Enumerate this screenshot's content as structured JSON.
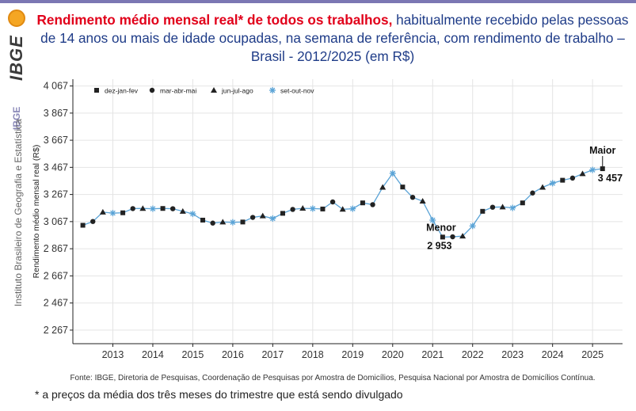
{
  "branding": {
    "logo_word": "IBGE",
    "sidebar_label": "IBGE",
    "institute": "Instituto Brasileiro de Geografia e Estatística"
  },
  "header": {
    "title_red": "Rendimento médio mensal real* de todos os trabalhos,",
    "title_rest": " habitualmente recebido pelas pessoas de 14 anos ou mais de idade ocupadas, na semana de referência, com rendimento de trabalho – Brasil - 2012/2025 (em R$)"
  },
  "source": "Fonte: IBGE, Diretoria de Pesquisas, Coordenação de Pesquisas por Amostra de Domicílios, Pesquisa Nacional por Amostra de Domicílios Contínua.",
  "footnote": "* a preços da média dos três meses do trimestre que está sendo divulgado",
  "chart_data": {
    "type": "line",
    "ylabel": "Rendimento médio mensal real (R$)",
    "xlabel": "",
    "ylim": [
      2167,
      4117
    ],
    "y_ticks": [
      2267,
      2467,
      2667,
      2867,
      3067,
      3267,
      3467,
      3667,
      3867,
      4067
    ],
    "y_tick_labels": [
      "2 267",
      "2 467",
      "2 667",
      "2 867",
      "3 067",
      "3 267",
      "3 467",
      "3 667",
      "3 867",
      "4 067"
    ],
    "x_ticks": [
      2013,
      2014,
      2015,
      2016,
      2017,
      2018,
      2019,
      2020,
      2021,
      2022,
      2023,
      2024,
      2025
    ],
    "grid": true,
    "line_color": "#5aa3d6",
    "legend": {
      "placement": "top-left",
      "entries": [
        {
          "label": "dez-jan-fev",
          "marker": "square"
        },
        {
          "label": "mar-abr-mai",
          "marker": "circle"
        },
        {
          "label": "jun-jul-ago",
          "marker": "triangle"
        },
        {
          "label": "set-out-nov",
          "marker": "asterisk"
        }
      ]
    },
    "series": [
      {
        "values": [
          {
            "x": 2012.25,
            "y": 3040,
            "m": "square"
          },
          {
            "x": 2012.5,
            "y": 3068,
            "m": "circle"
          },
          {
            "x": 2012.75,
            "y": 3137,
            "m": "triangle"
          },
          {
            "x": 2013.0,
            "y": 3130,
            "m": "asterisk"
          },
          {
            "x": 2013.25,
            "y": 3132,
            "m": "square"
          },
          {
            "x": 2013.5,
            "y": 3163,
            "m": "circle"
          },
          {
            "x": 2013.75,
            "y": 3164,
            "m": "triangle"
          },
          {
            "x": 2014.0,
            "y": 3162,
            "m": "asterisk"
          },
          {
            "x": 2014.25,
            "y": 3164,
            "m": "square"
          },
          {
            "x": 2014.5,
            "y": 3162,
            "m": "circle"
          },
          {
            "x": 2014.75,
            "y": 3143,
            "m": "triangle"
          },
          {
            "x": 2015.0,
            "y": 3124,
            "m": "asterisk"
          },
          {
            "x": 2015.25,
            "y": 3078,
            "m": "square"
          },
          {
            "x": 2015.5,
            "y": 3056,
            "m": "circle"
          },
          {
            "x": 2015.75,
            "y": 3064,
            "m": "triangle"
          },
          {
            "x": 2016.0,
            "y": 3062,
            "m": "asterisk"
          },
          {
            "x": 2016.25,
            "y": 3064,
            "m": "square"
          },
          {
            "x": 2016.5,
            "y": 3098,
            "m": "circle"
          },
          {
            "x": 2016.75,
            "y": 3109,
            "m": "triangle"
          },
          {
            "x": 2017.0,
            "y": 3090,
            "m": "asterisk"
          },
          {
            "x": 2017.25,
            "y": 3128,
            "m": "square"
          },
          {
            "x": 2017.5,
            "y": 3157,
            "m": "circle"
          },
          {
            "x": 2017.75,
            "y": 3165,
            "m": "triangle"
          },
          {
            "x": 2018.0,
            "y": 3163,
            "m": "asterisk"
          },
          {
            "x": 2018.25,
            "y": 3160,
            "m": "square"
          },
          {
            "x": 2018.5,
            "y": 3212,
            "m": "circle"
          },
          {
            "x": 2018.75,
            "y": 3158,
            "m": "triangle"
          },
          {
            "x": 2019.0,
            "y": 3162,
            "m": "asterisk"
          },
          {
            "x": 2019.25,
            "y": 3205,
            "m": "square"
          },
          {
            "x": 2019.5,
            "y": 3192,
            "m": "circle"
          },
          {
            "x": 2019.75,
            "y": 3320,
            "m": "triangle"
          },
          {
            "x": 2020.0,
            "y": 3423,
            "m": "asterisk"
          },
          {
            "x": 2020.25,
            "y": 3322,
            "m": "square"
          },
          {
            "x": 2020.5,
            "y": 3246,
            "m": "circle"
          },
          {
            "x": 2020.75,
            "y": 3218,
            "m": "triangle"
          },
          {
            "x": 2021.0,
            "y": 3078,
            "m": "asterisk"
          },
          {
            "x": 2021.25,
            "y": 2953,
            "m": "square"
          },
          {
            "x": 2021.5,
            "y": 2955,
            "m": "circle"
          },
          {
            "x": 2021.75,
            "y": 2960,
            "m": "triangle"
          },
          {
            "x": 2022.0,
            "y": 3035,
            "m": "asterisk"
          },
          {
            "x": 2022.25,
            "y": 3143,
            "m": "square"
          },
          {
            "x": 2022.5,
            "y": 3173,
            "m": "circle"
          },
          {
            "x": 2022.75,
            "y": 3175,
            "m": "triangle"
          },
          {
            "x": 2023.0,
            "y": 3168,
            "m": "asterisk"
          },
          {
            "x": 2023.25,
            "y": 3205,
            "m": "square"
          },
          {
            "x": 2023.5,
            "y": 3278,
            "m": "circle"
          },
          {
            "x": 2023.75,
            "y": 3320,
            "m": "triangle"
          },
          {
            "x": 2024.0,
            "y": 3350,
            "m": "asterisk"
          },
          {
            "x": 2024.25,
            "y": 3372,
            "m": "square"
          },
          {
            "x": 2024.5,
            "y": 3388,
            "m": "circle"
          },
          {
            "x": 2024.75,
            "y": 3420,
            "m": "triangle"
          },
          {
            "x": 2025.0,
            "y": 3448,
            "m": "asterisk"
          },
          {
            "x": 2025.25,
            "y": 3457,
            "m": "square"
          }
        ]
      }
    ],
    "annotations": [
      {
        "label": "Menor",
        "value_label": "2 953",
        "x": 2021.25,
        "y": 2953
      },
      {
        "label": "Maior",
        "value_label": "3 457",
        "x": 2025.25,
        "y": 3457
      }
    ]
  }
}
